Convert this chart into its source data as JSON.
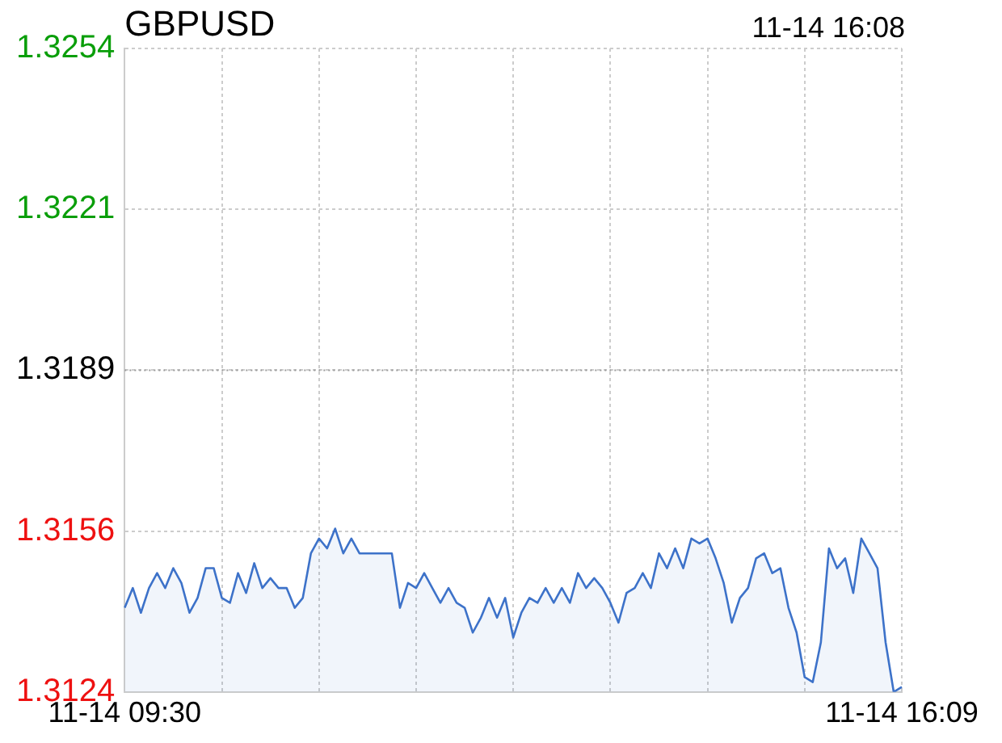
{
  "chart_data": {
    "type": "area",
    "title": "GBPUSD",
    "annotations": [
      "11-14 16:08"
    ],
    "categories": [
      "11-14 09:30",
      null,
      null,
      null,
      null,
      null,
      null,
      null,
      null,
      null,
      null,
      null,
      null,
      null,
      null,
      null,
      null,
      null,
      null,
      null,
      null,
      null,
      null,
      null,
      null,
      null,
      null,
      null,
      null,
      null,
      null,
      null,
      null,
      null,
      null,
      null,
      null,
      null,
      null,
      null,
      null,
      null,
      null,
      null,
      null,
      null,
      null,
      null,
      null,
      null,
      null,
      null,
      null,
      null,
      null,
      null,
      null,
      null,
      null,
      null,
      null,
      null,
      null,
      null,
      null,
      null,
      null,
      null,
      null,
      null,
      null,
      null,
      null,
      null,
      null,
      null,
      null,
      null,
      null,
      null,
      null,
      null,
      null,
      null,
      null,
      null,
      null,
      null,
      null,
      null,
      null,
      null,
      null,
      null,
      null,
      null,
      "11-14 16:09"
    ],
    "ylim": [
      1.3124,
      1.3254
    ],
    "yticks": [
      {
        "value": 1.3124,
        "label": "1.3124"
      },
      {
        "value": 1.31565,
        "label": "1.3156"
      },
      {
        "value": 1.3189,
        "label": "1.3189"
      },
      {
        "value": 1.32215,
        "label": "1.3221"
      },
      {
        "value": 1.3254,
        "label": "1.3254"
      }
    ],
    "grid": true,
    "legend": false,
    "marker": "none",
    "line_style": "solid",
    "ref_lines": [
      {
        "axis": "y",
        "value": 1.3189,
        "color": "#999999",
        "line_style": "dotted"
      }
    ],
    "series": [
      {
        "color": "#3d72c9",
        "values": [
          1.3141,
          1.3145,
          1.314,
          1.3145,
          1.3148,
          1.3145,
          1.3149,
          1.3146,
          1.314,
          1.3143,
          1.3149,
          1.3149,
          1.3143,
          1.3142,
          1.3148,
          1.3144,
          1.315,
          1.3145,
          1.3147,
          1.3145,
          1.3145,
          1.3141,
          1.3143,
          1.3152,
          1.3155,
          1.3153,
          1.3157,
          1.3152,
          1.3155,
          1.3152,
          1.3152,
          1.3152,
          1.3152,
          1.3152,
          1.3141,
          1.3146,
          1.3145,
          1.3148,
          1.3145,
          1.3142,
          1.3145,
          1.3142,
          1.3141,
          1.3136,
          1.3139,
          1.3143,
          1.3139,
          1.3143,
          1.3135,
          1.314,
          1.3143,
          1.3142,
          1.3145,
          1.3142,
          1.3145,
          1.3142,
          1.3148,
          1.3145,
          1.3147,
          1.3145,
          1.3142,
          1.3138,
          1.3144,
          1.3145,
          1.3148,
          1.3145,
          1.3152,
          1.3149,
          1.3153,
          1.3149,
          1.3155,
          1.3154,
          1.3155,
          1.3151,
          1.3146,
          1.3138,
          1.3143,
          1.3145,
          1.3151,
          1.3152,
          1.3148,
          1.3149,
          1.3141,
          1.3136,
          1.3127,
          1.3126,
          1.3134,
          1.3153,
          1.3149,
          1.3151,
          1.3144,
          1.3155,
          1.3152,
          1.3149,
          1.3134,
          1.3124,
          1.3125
        ]
      }
    ]
  }
}
